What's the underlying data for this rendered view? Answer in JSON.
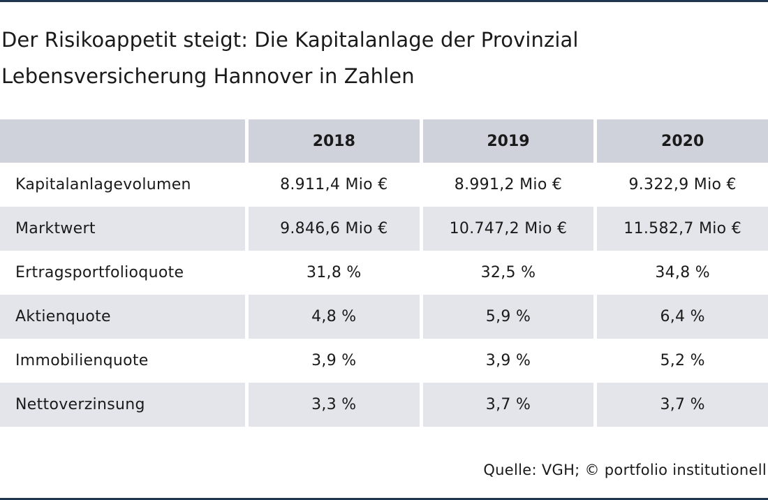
{
  "title": "Der Risikoappetit steigt: Die Kapitalanlage der Provinzial Lebensversicherung Hannover in Zahlen",
  "source": "Quelle: VGH; © portfolio institutionell",
  "colors": {
    "rule": "#1f3550",
    "header_bg": "#cfd1db",
    "shaded_row_bg": "#e4e5eb"
  },
  "chart_data": {
    "type": "table",
    "title": "Der Risikoappetit steigt: Die Kapitalanlage der Provinzial Lebensversicherung Hannover in Zahlen",
    "columns": [
      "",
      "2018",
      "2019",
      "2020"
    ],
    "rows": [
      {
        "label": "Kapitalanlagevolumen",
        "values": [
          "8.911,4 Mio €",
          "8.991,2 Mio €",
          "9.322,9 Mio €"
        ]
      },
      {
        "label": "Marktwert",
        "values": [
          "9.846,6 Mio €",
          "10.747,2 Mio €",
          "11.582,7 Mio €"
        ]
      },
      {
        "label": "Ertragsportfolioquote",
        "values": [
          "31,8 %",
          "32,5 %",
          "34,8 %"
        ]
      },
      {
        "label": "Aktienquote",
        "values": [
          "4,8 %",
          "5,9 %",
          "6,4 %"
        ]
      },
      {
        "label": "Immobilienquote",
        "values": [
          "3,9 %",
          "3,9 %",
          "5,2 %"
        ]
      },
      {
        "label": "Nettoverzinsung",
        "values": [
          "3,3 %",
          "3,7 %",
          "3,7 %"
        ]
      }
    ]
  }
}
